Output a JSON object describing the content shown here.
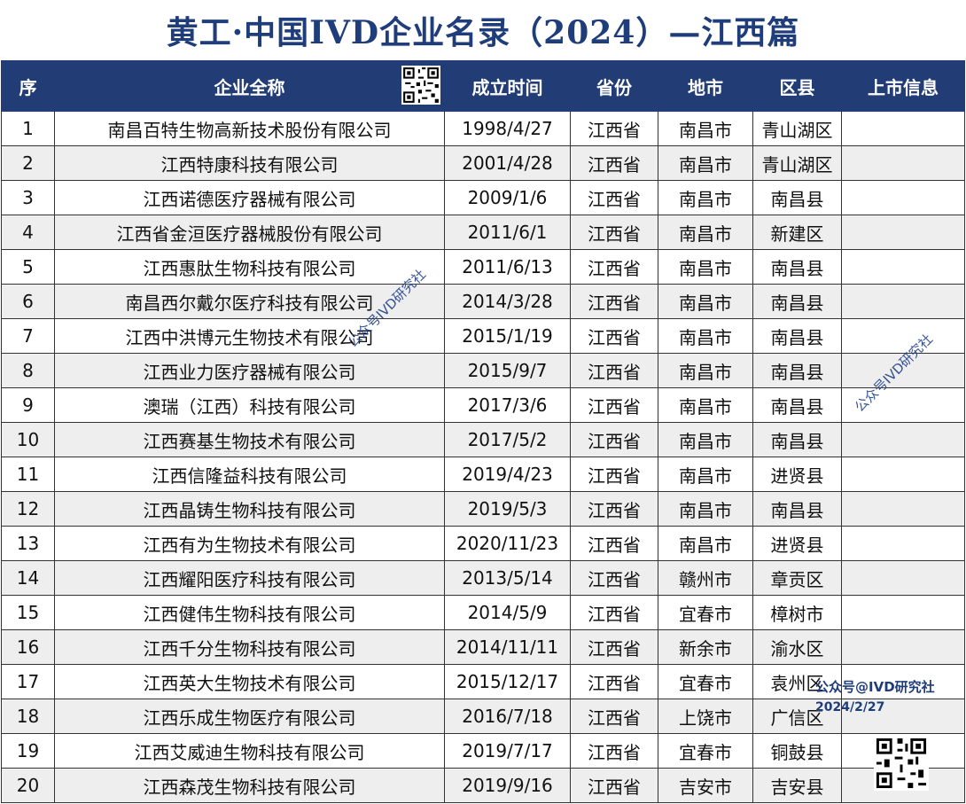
{
  "title": "黄工·中国IVD企业名录（2024）—江西篇",
  "headers": [
    "序",
    "企业全称",
    "成立时间",
    "省份",
    "地市",
    "区县",
    "上市信息"
  ],
  "rows": [
    [
      "1",
      "南昌百特生物高新技术股份有限公司",
      "1998/4/27",
      "江西省",
      "南昌市",
      "青山湖区",
      ""
    ],
    [
      "2",
      "江西特康科技有限公司",
      "2001/4/28",
      "江西省",
      "南昌市",
      "青山湖区",
      ""
    ],
    [
      "3",
      "江西诺德医疗器械有限公司",
      "2009/1/6",
      "江西省",
      "南昌市",
      "南昌县",
      ""
    ],
    [
      "4",
      "江西省金洹医疗器械股份有限公司",
      "2011/6/1",
      "江西省",
      "南昌市",
      "新建区",
      ""
    ],
    [
      "5",
      "江西惠肽生物科技有限公司",
      "2011/6/13",
      "江西省",
      "南昌市",
      "南昌县",
      ""
    ],
    [
      "6",
      "南昌西尔戴尔医疗科技有限公司",
      "2014/3/28",
      "江西省",
      "南昌市",
      "南昌县",
      ""
    ],
    [
      "7",
      "江西中洪博元生物技术有限公司",
      "2015/1/19",
      "江西省",
      "南昌市",
      "南昌县",
      ""
    ],
    [
      "8",
      "江西业力医疗器械有限公司",
      "2015/9/7",
      "江西省",
      "南昌市",
      "南昌县",
      ""
    ],
    [
      "9",
      "澳瑞（江西）科技有限公司",
      "2017/3/6",
      "江西省",
      "南昌市",
      "南昌县",
      ""
    ],
    [
      "10",
      "江西赛基生物技术有限公司",
      "2017/5/2",
      "江西省",
      "南昌市",
      "南昌县",
      ""
    ],
    [
      "11",
      "江西信隆益科技有限公司",
      "2019/4/23",
      "江西省",
      "南昌市",
      "进贤县",
      ""
    ],
    [
      "12",
      "江西晶铸生物科技有限公司",
      "2019/5/3",
      "江西省",
      "南昌市",
      "南昌县",
      ""
    ],
    [
      "13",
      "江西有为生物技术有限公司",
      "2020/11/23",
      "江西省",
      "南昌市",
      "进贤县",
      ""
    ],
    [
      "14",
      "江西耀阳医疗科技有限公司",
      "2013/5/14",
      "江西省",
      "赣州市",
      "章贡区",
      ""
    ],
    [
      "15",
      "江西健伟生物科技有限公司",
      "2014/5/9",
      "江西省",
      "宜春市",
      "樟树市",
      ""
    ],
    [
      "16",
      "江西千分生物科技有限公司",
      "2014/11/11",
      "江西省",
      "新余市",
      "渝水区",
      ""
    ],
    [
      "17",
      "江西英大生物技术有限公司",
      "2015/12/17",
      "江西省",
      "宜春市",
      "袁州区",
      ""
    ],
    [
      "18",
      "江西乐成生物医疗有限公司",
      "2016/7/18",
      "江西省",
      "上饶市",
      "广信区",
      ""
    ],
    [
      "19",
      "江西艾威迪生物科技有限公司",
      "2019/7/17",
      "江西省",
      "宜春市",
      "铜鼓县",
      ""
    ],
    [
      "20",
      "江西森茂生物科技有限公司",
      "2019/9/16",
      "江西省",
      "吉安市",
      "吉安县",
      ""
    ]
  ],
  "watermark": "公众号IVD研究社",
  "corner_mark": "公众号@IVD研究社",
  "corner_date": "2024/2/27",
  "icons": [
    "qr-code-icon"
  ],
  "colors": {
    "title": "#1f3d7a",
    "header_bg": "#223d76",
    "header_text": "#ffffff",
    "alt_row": "#eeeeee"
  }
}
